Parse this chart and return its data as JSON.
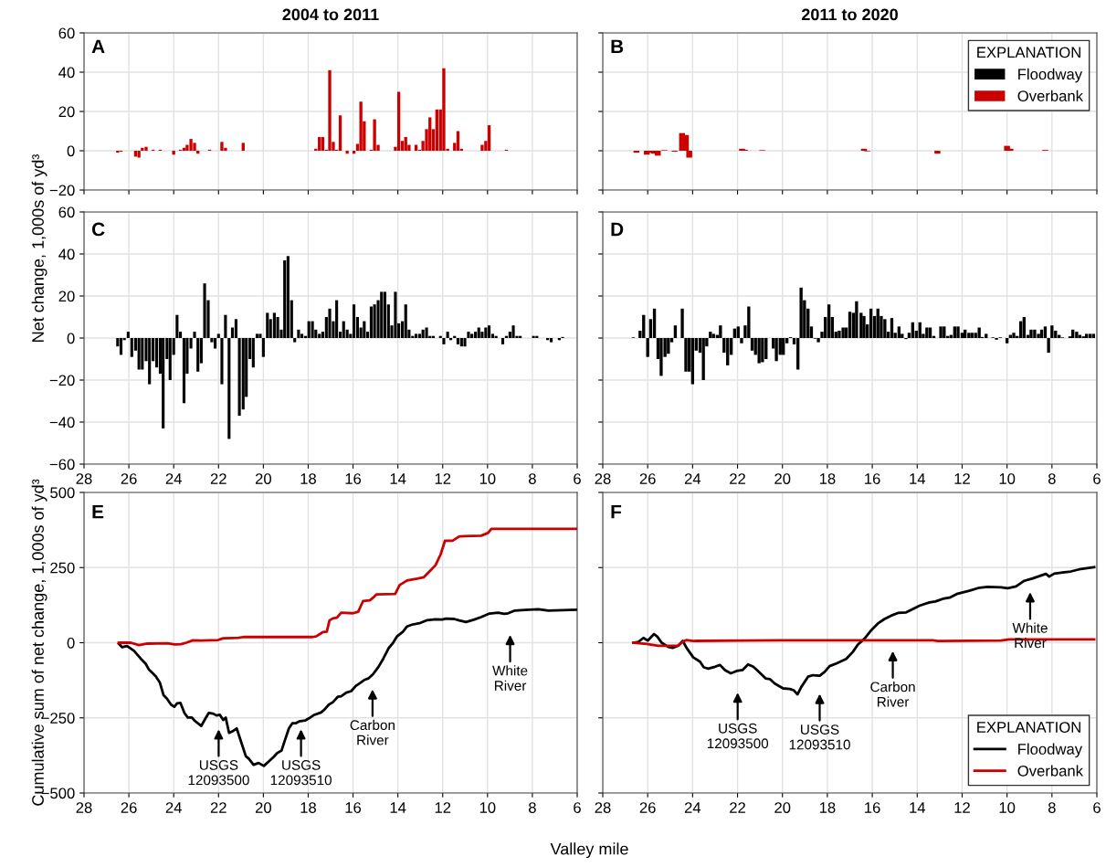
{
  "chart_data": [
    {
      "type": "bar",
      "title": "2004 to 2011",
      "annotations": [
        "A"
      ],
      "xlim": [
        28,
        6
      ],
      "ylim": [
        -20,
        60
      ],
      "xticks": [
        28,
        26,
        24,
        22,
        20,
        18,
        16,
        14,
        12,
        10,
        8,
        6
      ],
      "yticks": [
        {
          "value": -20,
          "label": "−20"
        },
        0,
        20,
        40,
        60
      ],
      "tick_labels": "y",
      "grid": true,
      "series": [
        {
          "color": "#cc0000",
          "x": [
            26.5,
            26.35,
            25.7,
            25.55,
            25.4,
            25.23,
            24.92,
            24.6,
            24.0,
            23.7,
            23.54,
            23.4,
            23.23,
            23.07,
            22.92,
            22.4,
            21.85,
            21.69,
            20.9,
            17.66,
            17.5,
            17.35,
            17.19,
            17.04,
            16.88,
            16.73,
            16.57,
            16.26,
            15.96,
            15.8,
            15.65,
            15.5,
            15.19,
            15.04,
            14.88,
            14.11,
            13.96,
            13.8,
            13.65,
            13.5,
            13.19,
            13.03,
            12.88,
            12.72,
            12.57,
            12.42,
            12.26,
            12.1,
            11.95,
            11.78,
            11.47,
            11.32,
            11.16,
            10.24,
            10.08,
            9.93,
            9.16
          ],
          "values": [
            -1,
            -0.5,
            -3,
            -3.5,
            1.5,
            2,
            0.5,
            0.5,
            -2,
            0.5,
            1.5,
            3,
            6,
            4,
            -1.5,
            0.5,
            4.5,
            1.5,
            4,
            1,
            7,
            7,
            0.5,
            41,
            4.5,
            0.5,
            18,
            -1.5,
            -1.5,
            3.5,
            25,
            15,
            0.5,
            16,
            3,
            2,
            30,
            5,
            7,
            3,
            3,
            0.5,
            5,
            11,
            17,
            11,
            21,
            21,
            42,
            1,
            4,
            10,
            1,
            3,
            5,
            13,
            0.5
          ]
        }
      ]
    },
    {
      "type": "bar",
      "title": "2011 to 2020",
      "annotations": [
        "B"
      ],
      "xlim": [
        28,
        6
      ],
      "ylim": [
        -20,
        60
      ],
      "xticks": [
        28,
        26,
        24,
        22,
        20,
        18,
        16,
        14,
        12,
        10,
        8,
        6
      ],
      "yticks": [
        -20,
        0,
        20,
        40,
        60
      ],
      "tick_labels": false,
      "grid": true,
      "legend": "top right",
      "legend_title": "EXPLANATION",
      "series": [
        {
          "name": "Floodway",
          "color": "#000000"
        },
        {
          "name": "Overbank",
          "color": "#cc0000",
          "x": [
            26.5,
            26.04,
            25.87,
            25.72,
            25.55,
            25.26,
            24.8,
            24.47,
            24.3,
            24.15,
            21.8,
            21.67,
            20.9,
            16.37,
            16.22,
            13.1,
            10.0,
            9.85,
            8.3
          ],
          "values": [
            -1,
            -2,
            -1,
            -1.5,
            -2.5,
            0.3,
            -0.5,
            9,
            8,
            -3.5,
            1,
            0.5,
            0.3,
            1,
            -0.3,
            -1.5,
            2.5,
            1,
            0.4
          ]
        }
      ]
    },
    {
      "type": "bar",
      "ylabel": "Net change, 1,000s of yd³",
      "annotations": [
        "C"
      ],
      "xlim": [
        28,
        6
      ],
      "ylim": [
        -60,
        60
      ],
      "xticks": [
        28,
        26,
        24,
        22,
        20,
        18,
        16,
        14,
        12,
        10,
        8,
        6
      ],
      "yticks": [
        {
          "value": -60,
          "label": "−60"
        },
        {
          "value": -40,
          "label": "−40"
        },
        {
          "value": -20,
          "label": "−20"
        },
        0,
        20,
        40,
        60
      ],
      "grid": true,
      "series": [
        {
          "color": "#000000",
          "x": [
            26.5,
            26.35,
            26.2,
            26.03,
            25.87,
            25.7,
            25.55,
            25.4,
            25.23,
            25.08,
            24.92,
            24.76,
            24.6,
            24.47,
            24.3,
            24.16,
            24.0,
            23.85,
            23.7,
            23.54,
            23.4,
            23.23,
            23.07,
            22.92,
            22.77,
            22.62,
            22.46,
            22.3,
            22.15,
            22.0,
            21.85,
            21.69,
            21.53,
            21.38,
            21.22,
            21.07,
            20.9,
            20.76,
            20.6,
            20.45,
            20.28,
            20.14,
            20.0,
            19.82,
            19.68,
            19.51,
            19.36,
            19.2,
            19.05,
            18.9,
            18.74,
            18.6,
            18.43,
            18.28,
            18.12,
            17.97,
            17.81,
            17.66,
            17.5,
            17.35,
            17.19,
            17.04,
            16.88,
            16.73,
            16.57,
            16.42,
            16.26,
            16.11,
            15.96,
            15.8,
            15.65,
            15.5,
            15.35,
            15.19,
            15.04,
            14.88,
            14.73,
            14.58,
            14.42,
            14.27,
            14.11,
            13.96,
            13.8,
            13.65,
            13.5,
            13.34,
            13.19,
            13.03,
            12.88,
            12.72,
            12.57,
            12.42,
            12.1,
            11.95,
            11.78,
            11.64,
            11.47,
            11.32,
            11.16,
            11.01,
            10.85,
            10.7,
            10.54,
            10.39,
            10.24,
            10.08,
            9.93,
            9.77,
            9.62,
            9.32,
            9.16,
            9.0,
            8.85,
            8.69,
            8.54,
            7.95,
            7.8,
            7.32,
            7.16,
            6.8,
            6.65
          ],
          "values": [
            -4,
            -8,
            -1,
            3,
            -9,
            -6,
            -15,
            -15,
            -11,
            -22,
            -11,
            -14,
            -17,
            -43,
            -10,
            -20,
            -8,
            11,
            3,
            -31,
            -17,
            -5,
            3,
            -16,
            -12,
            26,
            18,
            -2,
            -5,
            2,
            -22,
            11,
            -48,
            5,
            9,
            -37,
            -34,
            -28,
            -10,
            -14,
            2,
            2,
            -9,
            12,
            9,
            12,
            10,
            4,
            37,
            39,
            18,
            -2,
            4,
            2,
            1,
            8,
            8,
            4,
            2,
            3,
            10,
            14,
            8,
            18,
            3,
            8,
            4,
            2,
            16,
            10,
            5,
            8,
            3,
            15,
            16,
            18,
            22,
            22,
            16,
            6,
            22,
            7,
            8,
            16,
            4,
            1,
            2,
            2,
            4,
            5,
            1,
            1,
            1,
            -3,
            3,
            -1,
            1,
            -3,
            -4,
            -4,
            3,
            2,
            3,
            5,
            3,
            5,
            6,
            2,
            1,
            -3,
            1,
            3,
            6,
            1,
            1,
            1,
            1,
            -1,
            -2,
            -1,
            0.5
          ]
        }
      ]
    },
    {
      "type": "bar",
      "annotations": [
        "D"
      ],
      "xlim": [
        28,
        6
      ],
      "ylim": [
        -60,
        60
      ],
      "xticks": [
        28,
        26,
        24,
        22,
        20,
        18,
        16,
        14,
        12,
        10,
        8,
        6
      ],
      "yticks": [
        -60,
        -40,
        -20,
        0,
        20,
        40,
        60
      ],
      "tick_labels": "x",
      "grid": true,
      "series": [
        {
          "color": "#000000",
          "x": [
            26.64,
            26.34,
            26.18,
            26.0,
            25.87,
            25.7,
            25.54,
            25.4,
            25.23,
            25.08,
            24.93,
            24.77,
            24.46,
            24.3,
            24.15,
            24.0,
            23.84,
            23.67,
            23.52,
            23.37,
            23.21,
            23.07,
            22.9,
            22.76,
            22.6,
            22.44,
            22.28,
            22.13,
            21.97,
            21.82,
            21.66,
            21.5,
            21.35,
            21.2,
            21.04,
            20.89,
            20.73,
            20.41,
            20.27,
            20.1,
            19.96,
            19.8,
            19.64,
            19.48,
            19.31,
            19.17,
            19.02,
            18.86,
            18.71,
            18.55,
            18.4,
            18.24,
            18.09,
            17.93,
            17.78,
            17.62,
            17.47,
            17.3,
            17.16,
            17.0,
            16.84,
            16.7,
            16.5,
            16.37,
            16.22,
            16.06,
            15.9,
            15.75,
            15.6,
            15.44,
            15.29,
            15.13,
            14.98,
            14.81,
            14.67,
            14.5,
            14.36,
            14.2,
            14.04,
            13.88,
            13.73,
            13.57,
            13.42,
            13.26,
            12.95,
            12.8,
            12.64,
            12.49,
            12.33,
            12.18,
            12.0,
            11.87,
            11.7,
            11.56,
            11.4,
            11.24,
            11.1,
            10.93,
            10.63,
            10.47,
            10.3,
            10.0,
            9.85,
            9.7,
            9.55,
            9.39,
            9.24,
            9.07,
            8.93,
            8.77,
            8.6,
            8.46,
            8.3,
            8.15,
            8.0,
            7.84,
            7.68,
            7.53,
            7.2,
            7.07,
            6.9,
            6.76,
            6.6,
            6.46,
            6.3,
            6.15
          ],
          "values": [
            0.3,
            3.5,
            11,
            -9,
            9,
            14,
            -10,
            -18,
            -9,
            -7.5,
            -2,
            6,
            14,
            -16,
            -16,
            -22,
            -6,
            -7,
            -20,
            -4,
            3,
            2,
            1.5,
            6,
            -7,
            -13,
            -8,
            4.5,
            5.5,
            -2.5,
            6,
            15,
            -6,
            -8,
            -12,
            -11.5,
            -10,
            -5,
            -11,
            -8,
            -8,
            -2.5,
            0.4,
            -3,
            -15,
            24,
            18,
            14,
            5.5,
            -0.3,
            -2,
            3,
            10,
            16,
            10,
            3,
            3.5,
            5,
            5,
            12.5,
            12,
            17.5,
            12,
            10.5,
            6.5,
            14,
            10.5,
            14,
            10.5,
            9,
            3,
            9.5,
            2.5,
            5.5,
            2,
            -0.5,
            2.5,
            7.5,
            3.5,
            7.5,
            2,
            5,
            5,
            1,
            5.5,
            5.5,
            1,
            1.5,
            5.5,
            5.5,
            2.5,
            4,
            2.5,
            2.5,
            2.5,
            5,
            0.5,
            2,
            0.3,
            -0.8,
            0.3,
            -2.5,
            1.5,
            2.5,
            1,
            8,
            10,
            1.5,
            4,
            4,
            2,
            4,
            5.5,
            -7,
            6,
            3.5,
            1.5,
            0.3,
            0.8,
            4,
            3,
            1.5,
            0.8,
            2,
            2,
            2
          ]
        }
      ]
    },
    {
      "type": "line",
      "ylabel": "Cumulative sum of net change, 1,000s of yd³",
      "xlabel": "Valley mile",
      "xlim": [
        28,
        6
      ],
      "ylim": [
        -500,
        500
      ],
      "xticks": [
        28,
        26,
        24,
        22,
        20,
        18,
        16,
        14,
        12,
        10,
        8,
        6
      ],
      "yticks": [
        {
          "value": -500,
          "label": "−500"
        },
        {
          "value": -250,
          "label": "−250"
        },
        0,
        250,
        500
      ],
      "grid": true,
      "annotations": [
        "E",
        "USGS\n12093500",
        "USGS\n12093510",
        "Carbon\nRiver",
        "White\nRiver"
      ],
      "series": [
        {
          "color": "#000000",
          "x": [
            26.45,
            26.3,
            26.08,
            25.77,
            25.47,
            25.25,
            25.1,
            24.8,
            24.62,
            24.45,
            24.3,
            24.12,
            23.97,
            23.85,
            23.7,
            23.52,
            23.37,
            23.19,
            23.07,
            22.77,
            22.62,
            22.44,
            22.24,
            22.09,
            21.94,
            21.79,
            21.68,
            21.53,
            21.34,
            21.19,
            21.04,
            20.78,
            20.66,
            20.44,
            20.21,
            19.98,
            19.76,
            19.53,
            19.38,
            19.19,
            19.04,
            18.86,
            18.71,
            18.56,
            18.41,
            18.14,
            17.95,
            17.73,
            17.43,
            17.28,
            17.08,
            16.9,
            16.68,
            16.53,
            16.3,
            16.08,
            15.88,
            15.7,
            15.47,
            15.32,
            15.1,
            14.87,
            14.65,
            14.42,
            14.23,
            14.05,
            13.77,
            13.59,
            13.37,
            12.99,
            12.69,
            12.32,
            12.02,
            11.86,
            11.49,
            11.26,
            10.96,
            10.59,
            10.29,
            9.91,
            9.53,
            9.26,
            9.08,
            8.78,
            8.33,
            7.73,
            7.28,
            6.0
          ],
          "values": [
            -3,
            -15,
            -11,
            -27,
            -53,
            -70,
            -90,
            -112,
            -132,
            -175,
            -186,
            -206,
            -213,
            -202,
            -200,
            -234,
            -249,
            -249,
            -259,
            -277,
            -257,
            -234,
            -236,
            -242,
            -240,
            -257,
            -249,
            -300,
            -293,
            -285,
            -319,
            -378,
            -385,
            -406,
            -400,
            -410,
            -395,
            -379,
            -367,
            -359,
            -325,
            -285,
            -268,
            -268,
            -262,
            -259,
            -251,
            -240,
            -232,
            -223,
            -206,
            -198,
            -180,
            -178,
            -166,
            -161,
            -144,
            -135,
            -123,
            -119,
            -104,
            -81,
            -53,
            -19,
            -2,
            20,
            37,
            54,
            60,
            66,
            75,
            78,
            77,
            80,
            79,
            74,
            69,
            77,
            85,
            97,
            100,
            96,
            98,
            107,
            109,
            111,
            107,
            110
          ]
        },
        {
          "color": "#cc0000",
          "x": [
            26.45,
            25.92,
            25.55,
            25.17,
            24.27,
            23.97,
            23.67,
            23.44,
            23.14,
            22.77,
            22.02,
            21.79,
            21.11,
            20.89,
            17.8,
            17.65,
            17.35,
            17.17,
            17.05,
            16.9,
            16.72,
            16.53,
            16.0,
            15.77,
            15.55,
            15.25,
            15.1,
            14.95,
            14.12,
            13.92,
            13.59,
            13.14,
            12.84,
            12.62,
            12.32,
            12.09,
            11.9,
            11.56,
            11.26,
            10.29,
            9.98,
            9.83,
            6.0
          ],
          "values": [
            0,
            0,
            -8,
            -3,
            -2,
            -6,
            -5,
            0,
            8,
            7,
            9,
            15,
            16,
            19,
            19,
            21,
            35,
            37,
            74,
            81,
            83,
            100,
            98,
            103,
            139,
            141,
            150,
            161,
            162,
            192,
            207,
            213,
            218,
            235,
            258,
            294,
            339,
            339,
            354,
            356,
            365,
            379,
            379
          ]
        }
      ]
    },
    {
      "type": "line",
      "xlim": [
        28,
        6
      ],
      "ylim": [
        -500,
        500
      ],
      "xticks": [
        28,
        26,
        24,
        22,
        20,
        18,
        16,
        14,
        12,
        10,
        8,
        6
      ],
      "yticks": [
        -500,
        -250,
        0,
        250,
        500
      ],
      "tick_labels": "x",
      "grid": true,
      "legend": "bottom right",
      "legend_title": "EXPLANATION",
      "annotations": [
        "F",
        "USGS\n12093500",
        "USGS\n12093510",
        "Carbon\nRiver",
        "White\nRiver"
      ],
      "series": [
        {
          "name": "Floodway",
          "color": "#000000",
          "x": [
            26.64,
            26.41,
            26.19,
            26.0,
            25.72,
            25.57,
            25.38,
            25.08,
            24.89,
            24.64,
            24.44,
            24.27,
            23.97,
            23.67,
            23.5,
            23.3,
            23.0,
            22.78,
            22.56,
            22.3,
            22.04,
            21.78,
            21.53,
            21.3,
            21.13,
            20.74,
            20.56,
            20.34,
            19.97,
            19.67,
            19.5,
            19.33,
            19.16,
            18.86,
            18.64,
            18.34,
            18.12,
            17.9,
            17.6,
            17.16,
            16.86,
            16.64,
            16.34,
            16.04,
            15.75,
            15.45,
            15.16,
            14.86,
            14.49,
            14.2,
            13.9,
            13.45,
            13.19,
            12.86,
            12.56,
            12.2,
            11.68,
            11.23,
            10.86,
            10.27,
            9.97,
            9.6,
            9.23,
            8.86,
            8.27,
            8.12,
            7.9,
            7.53,
            7.16,
            6.79,
            6.12
          ],
          "values": [
            0,
            3,
            16,
            7,
            29,
            20,
            0,
            -14,
            -17,
            -10,
            6,
            -17,
            -49,
            -63,
            -82,
            -86,
            -80,
            -74,
            -91,
            -102,
            -94,
            -91,
            -72,
            -80,
            -91,
            -119,
            -121,
            -136,
            -152,
            -154,
            -158,
            -172,
            -147,
            -113,
            -108,
            -110,
            -97,
            -78,
            -69,
            -54,
            -30,
            -6,
            14,
            42,
            64,
            79,
            90,
            99,
            101,
            112,
            123,
            134,
            137,
            146,
            150,
            163,
            173,
            183,
            186,
            184,
            181,
            187,
            206,
            214,
            229,
            220,
            230,
            234,
            237,
            244,
            251
          ]
        },
        {
          "name": "Overbank",
          "color": "#cc0000",
          "x": [
            26.64,
            26.04,
            25.53,
            24.64,
            24.44,
            24.27,
            23.97,
            21.75,
            19.97,
            13.3,
            13.08,
            10.27,
            9.9,
            6.12
          ],
          "values": [
            0,
            -4,
            -10,
            -10,
            3,
            9,
            6,
            7,
            8,
            8,
            6,
            7,
            11,
            11
          ]
        }
      ]
    }
  ]
}
